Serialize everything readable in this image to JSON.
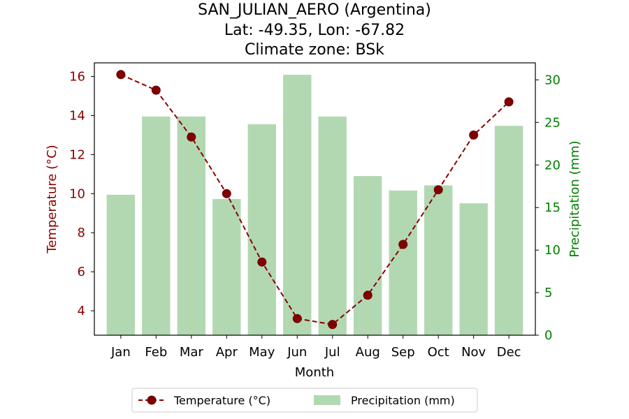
{
  "chart_data": {
    "type": "bar+line",
    "title_lines": [
      "SAN_JULIAN_AERO (Argentina)",
      "Lat: -49.35, Lon: -67.82",
      "Climate zone: BSk"
    ],
    "categories": [
      "Jan",
      "Feb",
      "Mar",
      "Apr",
      "May",
      "Jun",
      "Jul",
      "Aug",
      "Sep",
      "Oct",
      "Nov",
      "Dec"
    ],
    "xlabel": "Month",
    "series": [
      {
        "name": "Temperature (°C)",
        "axis": "left",
        "kind": "line",
        "style": "dashed with circle markers",
        "values": [
          16.1,
          15.3,
          12.9,
          10.0,
          6.5,
          3.6,
          3.3,
          4.8,
          7.4,
          10.2,
          13.0,
          14.7
        ]
      },
      {
        "name": "Precipitation (mm)",
        "axis": "right",
        "kind": "bar",
        "values": [
          16.5,
          25.7,
          25.7,
          16.0,
          24.8,
          30.6,
          25.7,
          18.7,
          17.0,
          17.6,
          15.5,
          24.6
        ]
      }
    ],
    "left_axis": {
      "label": "Temperature (°C)",
      "ticks": [
        4,
        6,
        8,
        10,
        12,
        14,
        16
      ],
      "range": [
        2.75,
        16.7
      ]
    },
    "right_axis": {
      "label": "Precipitation (mm)",
      "ticks": [
        0,
        5,
        10,
        15,
        20,
        25,
        30
      ],
      "range": [
        0,
        32
      ]
    },
    "legend": {
      "placement": "bottom-center",
      "entries": [
        "Temperature (°C)",
        "Precipitation (mm)"
      ]
    },
    "grid": false,
    "colors": {
      "temperature": "#8b0000",
      "temperature_marker": "#800000",
      "precipitation": "#b2d8b2",
      "right_axis": "#008000",
      "left_axis": "#8b0000"
    }
  }
}
